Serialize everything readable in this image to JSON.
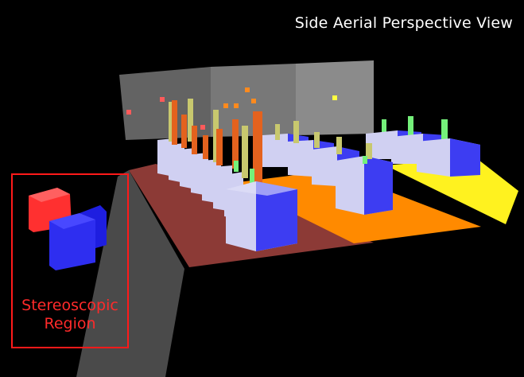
{
  "view": {
    "title": "Side Aerial Perspective View"
  },
  "stereo_region": {
    "label_line1": "Stereoscopic",
    "label_line2": "Region",
    "color": "#ff1a1a"
  },
  "colors": {
    "background": "#000000",
    "ground_red": "#8c3a36",
    "ground_orange": "#ff8a00",
    "ground_yellow": "#fff21f",
    "cube_front": "#3d3df2",
    "cube_side": "#d0d0f2",
    "bar_orange": "#e4621e",
    "bar_khaki": "#c8c86e",
    "bar_green": "#74f07a",
    "panel": "#9a9a9a",
    "marker_red": "#ff5a5a",
    "marker_orange": "#ff8a1e",
    "marker_yellow": "#ffff40"
  }
}
